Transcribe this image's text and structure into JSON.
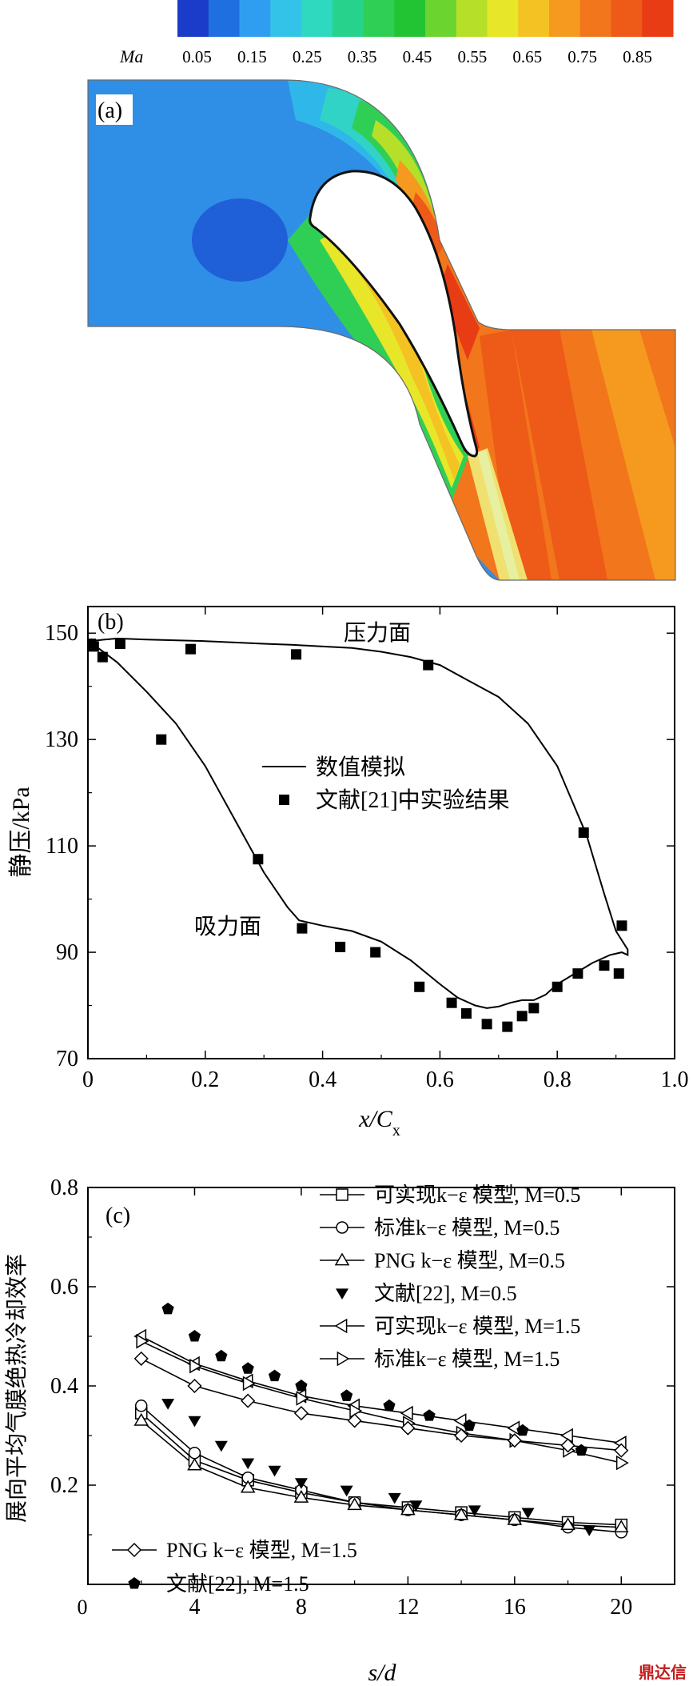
{
  "panel_a": {
    "label": "(a)",
    "colorbar": {
      "variable": "Ma",
      "ticks": [
        "0.05",
        "0.15",
        "0.25",
        "0.35",
        "0.45",
        "0.55",
        "0.65",
        "0.75",
        "0.85"
      ],
      "colors": [
        "#1a3cc8",
        "#1f6fe0",
        "#2f9ef0",
        "#34c3e8",
        "#2fd9c0",
        "#27d38c",
        "#2fcf56",
        "#22c433",
        "#6bd42e",
        "#b6df2a",
        "#e8e628",
        "#f4c223",
        "#f59a1f",
        "#f2761b",
        "#ee5a18",
        "#e83c14"
      ]
    }
  },
  "chart_data": [
    {
      "type": "line",
      "label": "(b)",
      "xlabel_main": "x/C",
      "xlabel_sub": "x",
      "ylabel": "静压/kPa",
      "xlim": [
        0,
        1.0
      ],
      "ylim": [
        70,
        155
      ],
      "xticks": [
        "0",
        "0.2",
        "0.4",
        "0.6",
        "0.8",
        "1.0"
      ],
      "yticks": [
        "70",
        "90",
        "110",
        "130",
        "150"
      ],
      "annotations": {
        "pressure_side": "压力面",
        "suction_side": "吸力面"
      },
      "legend": [
        "数值模拟",
        "文献[21]中实验结果"
      ],
      "series": [
        {
          "name": "数值模拟",
          "style": "line",
          "x": [
            0.0,
            0.05,
            0.1,
            0.2,
            0.3,
            0.35,
            0.4,
            0.45,
            0.5,
            0.55,
            0.6,
            0.65,
            0.7,
            0.75,
            0.8,
            0.85,
            0.88,
            0.9,
            0.92,
            0.92,
            0.91,
            0.89,
            0.86,
            0.83,
            0.8,
            0.78,
            0.76,
            0.74,
            0.72,
            0.7,
            0.68,
            0.66,
            0.63,
            0.6,
            0.55,
            0.5,
            0.45,
            0.4,
            0.36,
            0.34,
            0.3,
            0.25,
            0.2,
            0.15,
            0.1,
            0.05,
            0.02,
            0.0
          ],
          "y": [
            148.5,
            149.0,
            148.8,
            148.5,
            148.0,
            147.8,
            147.5,
            147.2,
            146.5,
            145.5,
            144.0,
            141.0,
            138.0,
            133.0,
            125.0,
            112.0,
            101.0,
            94.0,
            90.5,
            89.5,
            90.0,
            89.5,
            88.0,
            86.0,
            84.0,
            82.0,
            81.0,
            81.0,
            80.5,
            79.8,
            79.5,
            80.0,
            81.5,
            84.0,
            88.5,
            92.0,
            94.0,
            95.0,
            96.0,
            98.5,
            105.0,
            115.0,
            125.0,
            133.0,
            139.0,
            144.5,
            147.0,
            148.5
          ]
        },
        {
          "name": "文献[21]中实验结果",
          "style": "square",
          "x": [
            0.005,
            0.01,
            0.025,
            0.055,
            0.125,
            0.175,
            0.29,
            0.355,
            0.365,
            0.43,
            0.49,
            0.565,
            0.58,
            0.62,
            0.645,
            0.68,
            0.715,
            0.74,
            0.76,
            0.8,
            0.835,
            0.845,
            0.88,
            0.905,
            0.91
          ],
          "y": [
            148.0,
            147.5,
            145.5,
            148.0,
            130.0,
            147.0,
            107.5,
            146.0,
            94.5,
            91.0,
            90.0,
            83.5,
            144.0,
            80.5,
            78.5,
            76.5,
            76.0,
            78.0,
            79.5,
            83.5,
            86.0,
            112.5,
            87.5,
            86.0,
            95.0
          ]
        }
      ]
    },
    {
      "type": "line",
      "label": "(c)",
      "xlabel": "s/d",
      "ylabel": "展向平均气膜绝热冷却效率",
      "xlim": [
        0,
        22
      ],
      "ylim": [
        0,
        0.8
      ],
      "xticks": [
        "4",
        "8",
        "12",
        "16",
        "20"
      ],
      "yticks": [
        "0.2",
        "0.4",
        "0.6",
        "0.8"
      ],
      "origin_label": "0",
      "series": [
        {
          "legend": "可实现k−ε 模型, M=0.5",
          "marker": "square",
          "line": true,
          "x": [
            2,
            4,
            6,
            8,
            10,
            12,
            14,
            16,
            18,
            20
          ],
          "y": [
            0.345,
            0.25,
            0.21,
            0.185,
            0.165,
            0.155,
            0.145,
            0.135,
            0.125,
            0.12
          ]
        },
        {
          "legend": "标准k−ε 模型, M=0.5",
          "marker": "circle",
          "line": true,
          "x": [
            2,
            4,
            6,
            8,
            10,
            12,
            14,
            16,
            18,
            20
          ],
          "y": [
            0.36,
            0.265,
            0.215,
            0.19,
            0.165,
            0.15,
            0.14,
            0.13,
            0.115,
            0.105
          ]
        },
        {
          "legend": "PNG k−ε 模型, M=0.5",
          "marker": "triangle-up",
          "line": true,
          "x": [
            2,
            4,
            6,
            8,
            10,
            12,
            14,
            16,
            18,
            20
          ],
          "y": [
            0.33,
            0.24,
            0.195,
            0.175,
            0.16,
            0.15,
            0.14,
            0.13,
            0.12,
            0.115
          ]
        },
        {
          "legend": "文献[22], M=0.5",
          "marker": "triangle-down-filled",
          "line": false,
          "x": [
            3,
            4,
            5,
            6,
            7,
            8,
            9.7,
            11.5,
            12.3,
            14.5,
            16.5,
            18.8
          ],
          "y": [
            0.365,
            0.33,
            0.28,
            0.245,
            0.23,
            0.205,
            0.19,
            0.175,
            0.16,
            0.15,
            0.145,
            0.11
          ]
        },
        {
          "legend": "可实现k−ε 模型, M=1.5",
          "marker": "triangle-left",
          "line": true,
          "x": [
            2,
            4,
            6,
            8,
            10,
            12,
            14,
            16,
            18,
            20
          ],
          "y": [
            0.5,
            0.445,
            0.41,
            0.38,
            0.36,
            0.345,
            0.33,
            0.315,
            0.3,
            0.285
          ]
        },
        {
          "legend": "标准k−ε 模型, M=1.5",
          "marker": "triangle-right",
          "line": true,
          "x": [
            2,
            4,
            6,
            8,
            10,
            12,
            14,
            16,
            18,
            20
          ],
          "y": [
            0.49,
            0.44,
            0.405,
            0.375,
            0.35,
            0.325,
            0.305,
            0.29,
            0.27,
            0.245
          ]
        },
        {
          "legend": "PNG k−ε 模型, M=1.5",
          "marker": "diamond",
          "line": true,
          "x": [
            2,
            4,
            6,
            8,
            10,
            12,
            14,
            16,
            18,
            20
          ],
          "y": [
            0.455,
            0.4,
            0.37,
            0.345,
            0.33,
            0.315,
            0.3,
            0.29,
            0.28,
            0.27
          ]
        },
        {
          "legend": "文献[22], M=1.5",
          "marker": "pentagon-filled",
          "line": false,
          "x": [
            3,
            4,
            5,
            6,
            7,
            8,
            9.7,
            11.3,
            12.8,
            14.3,
            16.3,
            18.5
          ],
          "y": [
            0.555,
            0.5,
            0.46,
            0.435,
            0.42,
            0.4,
            0.38,
            0.36,
            0.34,
            0.32,
            0.31,
            0.27
          ]
        }
      ]
    }
  ],
  "watermark": "鼎达信"
}
